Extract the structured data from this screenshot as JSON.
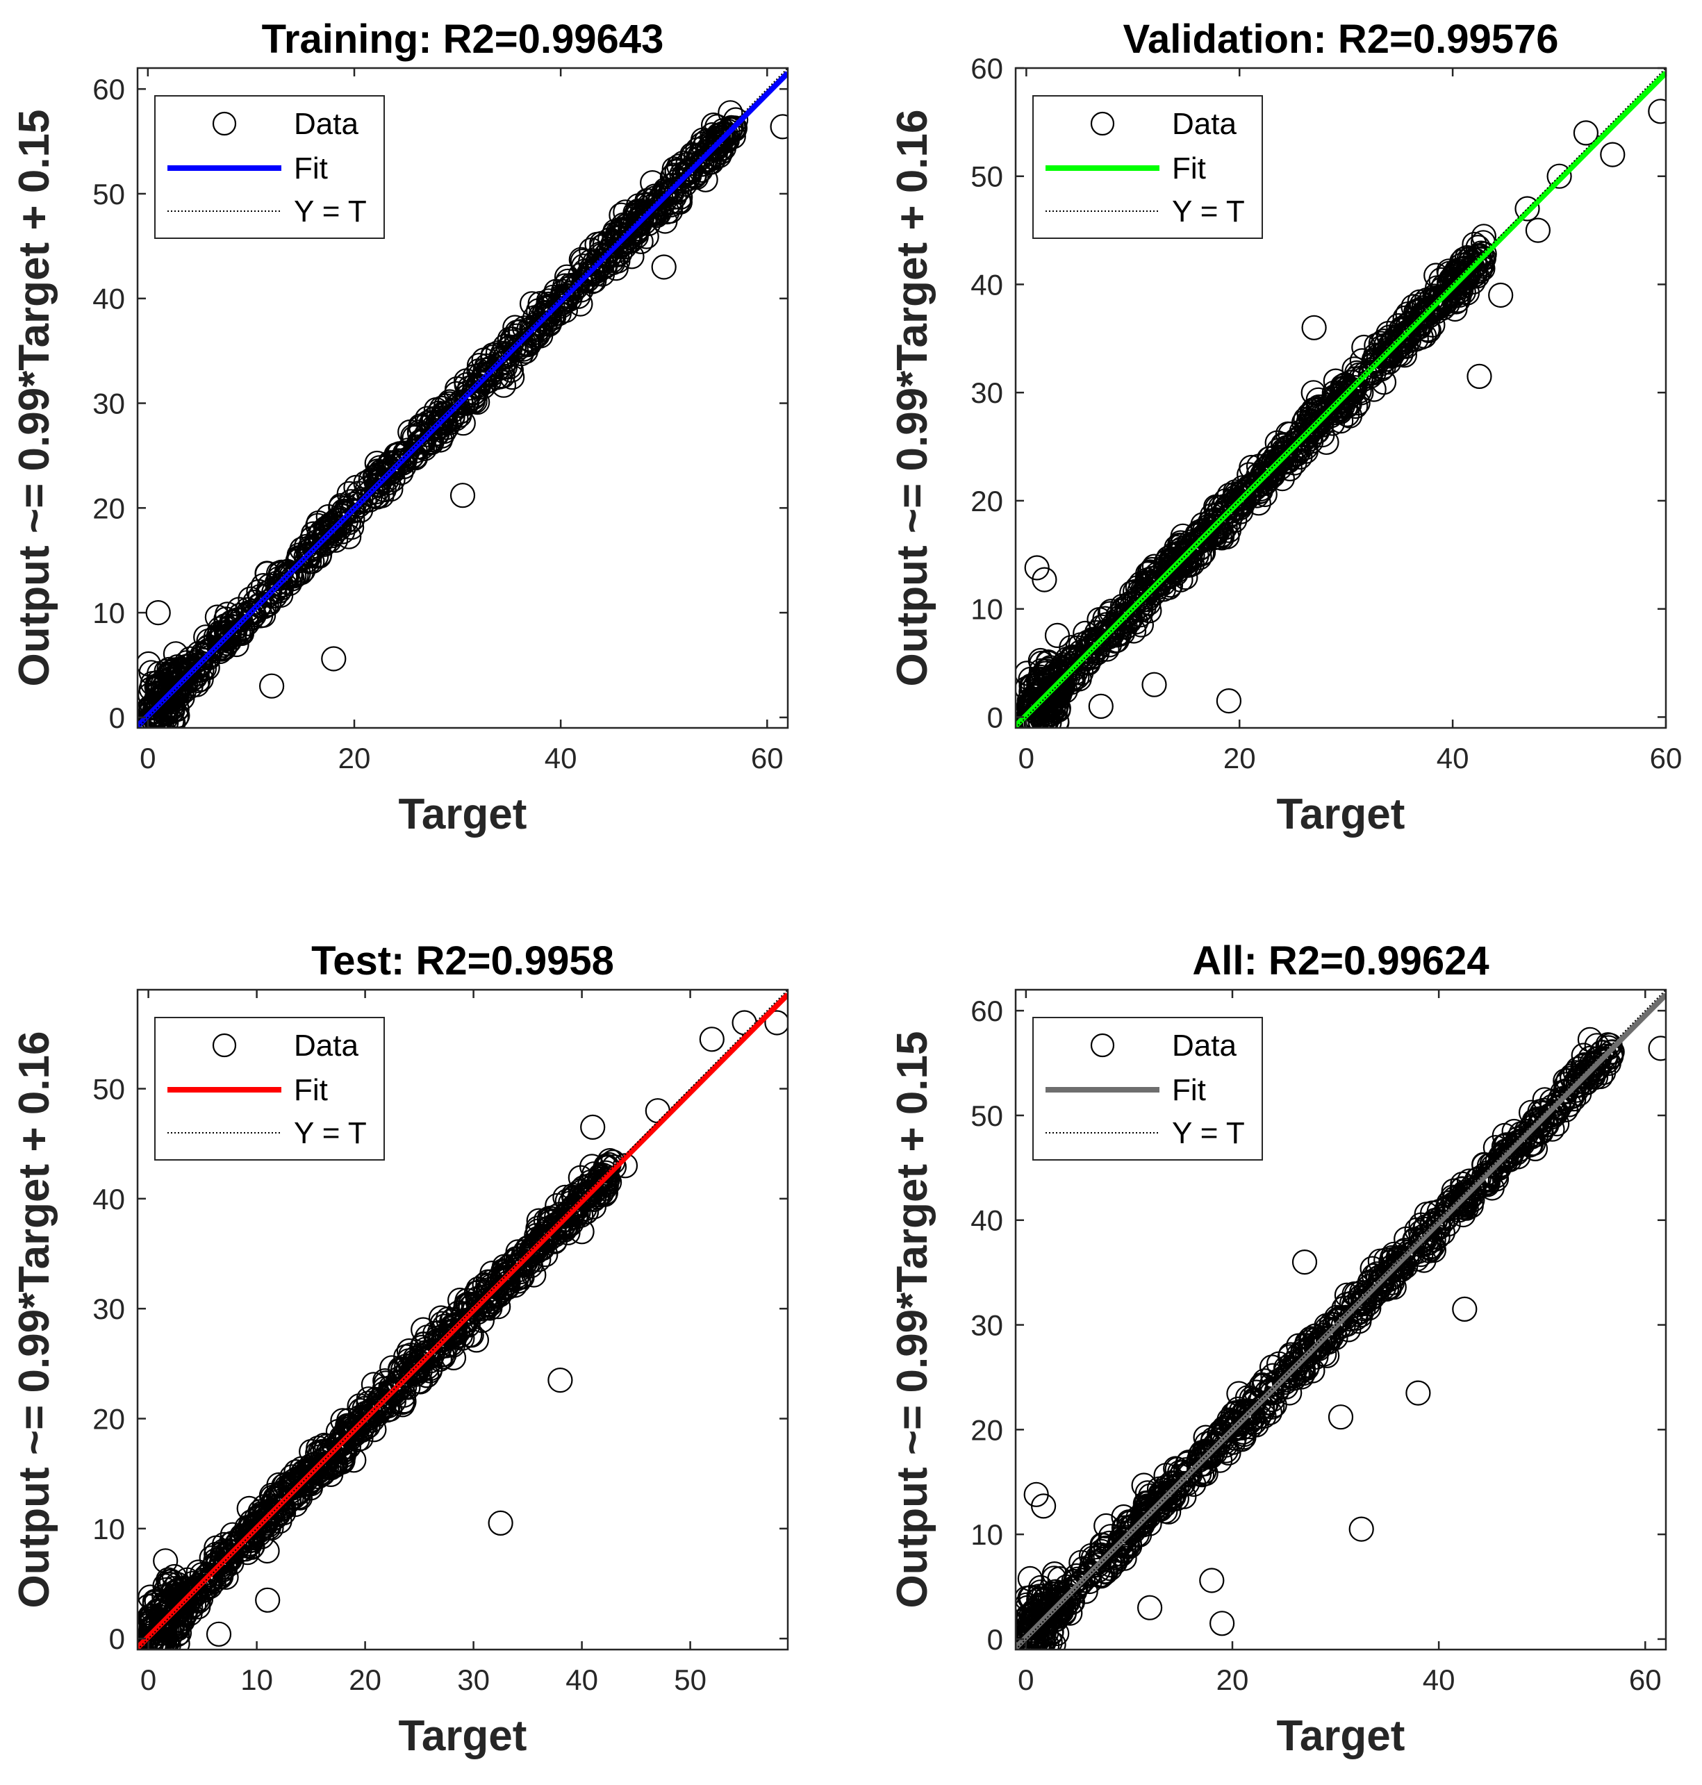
{
  "chart_data": [
    {
      "type": "scatter",
      "title": "Training: R2=0.99643",
      "xlabel": "Target",
      "ylabel": "Output ~= 0.99*Target + 0.15",
      "xlim": [
        -1,
        62
      ],
      "ylim": [
        -1,
        62
      ],
      "xticks": [
        0,
        20,
        40,
        60
      ],
      "yticks": [
        0,
        10,
        20,
        30,
        40,
        50,
        60
      ],
      "fit": {
        "slope": 0.99,
        "intercept": 0.15,
        "color": "#0000FF"
      },
      "legend": [
        "Data",
        "Fit",
        "Y = T"
      ],
      "legend_position": "top-left",
      "data_range": [
        0,
        57
      ],
      "outliers": [
        [
          18,
          5.6
        ],
        [
          30.5,
          21.2
        ],
        [
          1,
          10
        ],
        [
          12,
          3
        ],
        [
          61.5,
          56.4
        ],
        [
          46,
          46
        ],
        [
          50,
          43
        ]
      ]
    },
    {
      "type": "scatter",
      "title": "Validation: R2=0.99576",
      "xlabel": "Target",
      "ylabel": "Output ~= 0.99*Target + 0.16",
      "xlim": [
        -1,
        60
      ],
      "ylim": [
        -1,
        60
      ],
      "xticks": [
        0,
        20,
        40,
        60
      ],
      "yticks": [
        0,
        10,
        20,
        30,
        40,
        50,
        60
      ],
      "fit": {
        "slope": 0.99,
        "intercept": 0.16,
        "color": "#00FF00"
      },
      "legend": [
        "Data",
        "Fit",
        "Y = T"
      ],
      "legend_position": "top-left",
      "data_range": [
        0,
        43
      ],
      "outliers": [
        [
          19,
          1.5
        ],
        [
          42.5,
          31.5
        ],
        [
          1,
          13.8
        ],
        [
          1.7,
          12.7
        ],
        [
          7,
          1
        ],
        [
          12,
          3
        ],
        [
          50,
          50
        ],
        [
          52.5,
          54
        ],
        [
          48,
          45
        ],
        [
          55,
          52
        ],
        [
          59.5,
          56
        ],
        [
          44.5,
          39
        ],
        [
          47,
          47
        ],
        [
          27,
          36
        ]
      ]
    },
    {
      "type": "scatter",
      "title": "Test: R2=0.9958",
      "xlabel": "Target",
      "ylabel": "Output ~= 0.99*Target + 0.16",
      "xlim": [
        -1,
        59
      ],
      "ylim": [
        -1,
        59
      ],
      "xticks": [
        0,
        10,
        20,
        30,
        40,
        50
      ],
      "yticks": [
        0,
        10,
        20,
        30,
        40,
        50
      ],
      "fit": {
        "slope": 0.99,
        "intercept": 0.16,
        "color": "#FF0000"
      },
      "legend": [
        "Data",
        "Fit",
        "Y = T"
      ],
      "legend_position": "top-left",
      "data_range": [
        0,
        43
      ],
      "outliers": [
        [
          32.5,
          10.5
        ],
        [
          38,
          23.5
        ],
        [
          6.5,
          0.4
        ],
        [
          11,
          3.5
        ],
        [
          41,
          46.5
        ],
        [
          44,
          43
        ],
        [
          47,
          48
        ],
        [
          52,
          54.5
        ],
        [
          55,
          56
        ],
        [
          58,
          56
        ],
        [
          40,
          37
        ]
      ]
    },
    {
      "type": "scatter",
      "title": "All: R2=0.99624",
      "xlabel": "Target",
      "ylabel": "Output ~= 0.99*Target + 0.15",
      "xlim": [
        -1,
        62
      ],
      "ylim": [
        -1,
        62
      ],
      "xticks": [
        0,
        20,
        40,
        60
      ],
      "yticks": [
        0,
        10,
        20,
        30,
        40,
        50,
        60
      ],
      "fit": {
        "slope": 0.99,
        "intercept": 0.15,
        "color": "#6E6E6E"
      },
      "legend": [
        "Data",
        "Fit",
        "Y = T"
      ],
      "legend_position": "top-left",
      "data_range": [
        0,
        57
      ],
      "outliers": [
        [
          32.5,
          10.5
        ],
        [
          38,
          23.5
        ],
        [
          42.5,
          31.5
        ],
        [
          19,
          1.5
        ],
        [
          18,
          5.6
        ],
        [
          1,
          13.8
        ],
        [
          1.7,
          12.7
        ],
        [
          61.5,
          56.4
        ],
        [
          30.5,
          21.2
        ],
        [
          12,
          3
        ],
        [
          27,
          36
        ],
        [
          46,
          46
        ]
      ]
    }
  ]
}
